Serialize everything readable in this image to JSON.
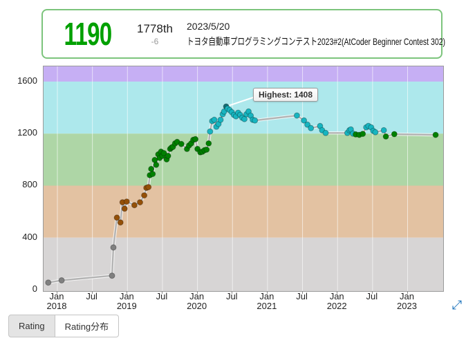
{
  "header": {
    "rating": "1190",
    "rank": "1778th",
    "delta": "-6",
    "date": "2023/5/20",
    "contest": "トヨタ自動車プログラミングコンテスト2023#2(AtCoder Beginner Contest 302)",
    "rating_color": "#00a000",
    "border_color": "#7cc47c"
  },
  "tabs": [
    {
      "label": "Rating",
      "active": true
    },
    {
      "label": "Rating分布",
      "active": false
    }
  ],
  "resize_icon": "⤢",
  "chart_data": {
    "type": "line",
    "title": "AtCoder rating history",
    "xlabel": "",
    "ylabel": "",
    "x_range": [
      2017.8,
      2023.51
    ],
    "y_range": [
      -15,
      1720
    ],
    "grid": "vertical-white",
    "y_ticks": [
      0,
      400,
      800,
      1200,
      1600
    ],
    "x_ticks": [
      {
        "pos": 2018.0,
        "month": "Jan",
        "year": "2018"
      },
      {
        "pos": 2018.5,
        "month": "Jul",
        "year": ""
      },
      {
        "pos": 2019.0,
        "month": "Jan",
        "year": "2019"
      },
      {
        "pos": 2019.5,
        "month": "Jul",
        "year": ""
      },
      {
        "pos": 2020.0,
        "month": "Jan",
        "year": "2020"
      },
      {
        "pos": 2020.5,
        "month": "Jul",
        "year": ""
      },
      {
        "pos": 2021.0,
        "month": "Jan",
        "year": "2021"
      },
      {
        "pos": 2021.5,
        "month": "Jul",
        "year": ""
      },
      {
        "pos": 2022.0,
        "month": "Jan",
        "year": "2022"
      },
      {
        "pos": 2022.5,
        "month": "Jul",
        "year": ""
      },
      {
        "pos": 2023.0,
        "month": "Jan",
        "year": "2023"
      }
    ],
    "bands": [
      {
        "from": 1600,
        "to": 1720,
        "color": "#c6aff4"
      },
      {
        "from": 1200,
        "to": 1600,
        "color": "#ade8ec"
      },
      {
        "from": 800,
        "to": 1200,
        "color": "#aed6a6"
      },
      {
        "from": 400,
        "to": 800,
        "color": "#e3c2a2"
      },
      {
        "from": -15,
        "to": 400,
        "color": "#d7d5d5"
      }
    ],
    "point_colors": [
      {
        "min": 0,
        "max": 400,
        "color": "#808080"
      },
      {
        "min": 400,
        "max": 800,
        "color": "#945008"
      },
      {
        "min": 800,
        "max": 1200,
        "color": "#008000"
      },
      {
        "min": 1200,
        "max": 1600,
        "color": "#17b5c0"
      }
    ],
    "line_color": "#b3b3b3",
    "highest": {
      "label": "Highest: 1408",
      "year": 2020.41,
      "value": 1408
    },
    "series": [
      {
        "name": "Rating",
        "points": [
          [
            2017.87,
            55
          ],
          [
            2018.06,
            72
          ],
          [
            2018.78,
            108
          ],
          [
            2018.8,
            325
          ],
          [
            2018.85,
            554
          ],
          [
            2018.9,
            517
          ],
          [
            2018.93,
            672
          ],
          [
            2018.96,
            623
          ],
          [
            2018.99,
            677
          ],
          [
            2019.1,
            650
          ],
          [
            2019.18,
            672
          ],
          [
            2019.24,
            725
          ],
          [
            2019.27,
            783
          ],
          [
            2019.3,
            789
          ],
          [
            2019.32,
            880
          ],
          [
            2019.34,
            928
          ],
          [
            2019.36,
            890
          ],
          [
            2019.39,
            997
          ],
          [
            2019.41,
            960
          ],
          [
            2019.44,
            1040
          ],
          [
            2019.46,
            1013
          ],
          [
            2019.48,
            1061
          ],
          [
            2019.5,
            1029
          ],
          [
            2019.52,
            1050
          ],
          [
            2019.56,
            1002
          ],
          [
            2019.58,
            1029
          ],
          [
            2019.61,
            1082
          ],
          [
            2019.63,
            1093
          ],
          [
            2019.65,
            1098
          ],
          [
            2019.68,
            1125
          ],
          [
            2019.71,
            1136
          ],
          [
            2019.77,
            1120
          ],
          [
            2019.85,
            1082
          ],
          [
            2019.88,
            1109
          ],
          [
            2019.91,
            1125
          ],
          [
            2019.94,
            1152
          ],
          [
            2019.97,
            1157
          ],
          [
            2020.0,
            1082
          ],
          [
            2020.04,
            1056
          ],
          [
            2020.07,
            1061
          ],
          [
            2020.1,
            1072
          ],
          [
            2020.13,
            1077
          ],
          [
            2020.16,
            1125
          ],
          [
            2020.18,
            1216
          ],
          [
            2020.21,
            1296
          ],
          [
            2020.24,
            1306
          ],
          [
            2020.27,
            1253
          ],
          [
            2020.3,
            1274
          ],
          [
            2020.33,
            1306
          ],
          [
            2020.36,
            1349
          ],
          [
            2020.38,
            1370
          ],
          [
            2020.41,
            1408
          ],
          [
            2020.43,
            1392
          ],
          [
            2020.46,
            1381
          ],
          [
            2020.49,
            1365
          ],
          [
            2020.52,
            1344
          ],
          [
            2020.55,
            1333
          ],
          [
            2020.58,
            1360
          ],
          [
            2020.61,
            1344
          ],
          [
            2020.64,
            1322
          ],
          [
            2020.67,
            1312
          ],
          [
            2020.7,
            1349
          ],
          [
            2020.73,
            1370
          ],
          [
            2020.76,
            1338
          ],
          [
            2020.79,
            1306
          ],
          [
            2020.82,
            1301
          ],
          [
            2021.42,
            1339
          ],
          [
            2021.52,
            1301
          ],
          [
            2021.57,
            1269
          ],
          [
            2021.62,
            1242
          ],
          [
            2021.75,
            1258
          ],
          [
            2021.78,
            1226
          ],
          [
            2021.83,
            1205
          ],
          [
            2022.14,
            1205
          ],
          [
            2022.17,
            1226
          ],
          [
            2022.19,
            1232
          ],
          [
            2022.22,
            1200
          ],
          [
            2022.26,
            1194
          ],
          [
            2022.31,
            1190
          ],
          [
            2022.36,
            1198
          ],
          [
            2022.41,
            1248
          ],
          [
            2022.44,
            1259
          ],
          [
            2022.48,
            1248
          ],
          [
            2022.51,
            1221
          ],
          [
            2022.54,
            1211
          ],
          [
            2022.66,
            1226
          ],
          [
            2022.69,
            1178
          ],
          [
            2022.81,
            1196
          ],
          [
            2023.4,
            1190
          ]
        ]
      }
    ]
  }
}
